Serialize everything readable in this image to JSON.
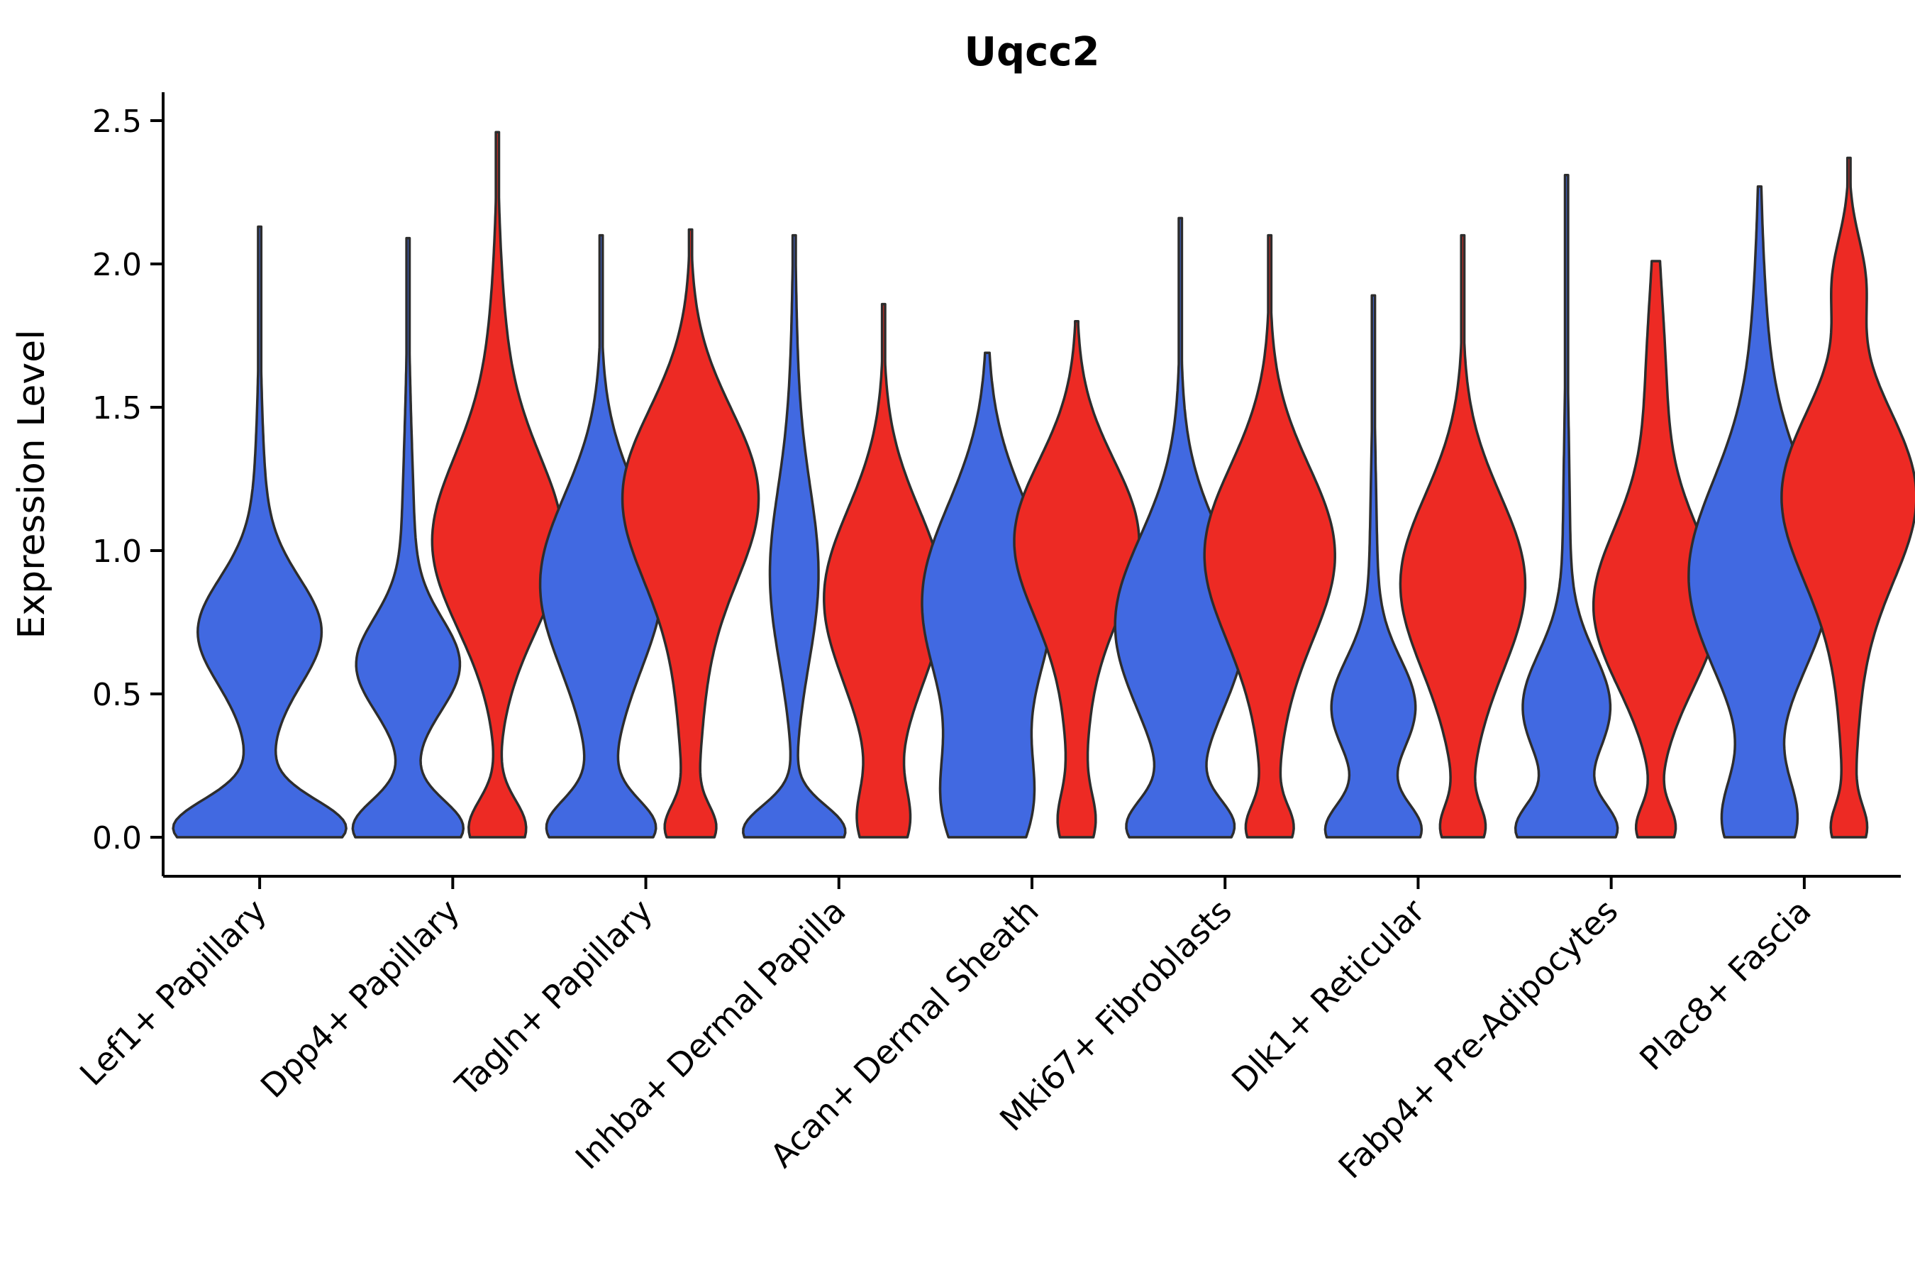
{
  "chart_data": {
    "type": "violin",
    "title": "Uqcc2",
    "ylabel": "Expression Level",
    "xlabel": "",
    "ylim": [
      0,
      2.5
    ],
    "yticks": [
      "0.0",
      "0.5",
      "1.0",
      "1.5",
      "2.0",
      "2.5"
    ],
    "ytick_values": [
      0.0,
      0.5,
      1.0,
      1.5,
      2.0,
      2.5
    ],
    "grid": false,
    "legend": "none",
    "colors": {
      "blue": "#4169e1",
      "red": "#ed2a24",
      "edge": "#2d2d2d",
      "axis": "#000000"
    },
    "categories": [
      "Lef1+ Papillary",
      "Dpp4+ Papillary",
      "Tagln+ Papillary",
      "Inhba+ Dermal Papilla",
      "Acan+ Dermal Sheath",
      "Mki67+ Fibroblasts",
      "Dlk1+ Reticular",
      "Fabp4+ Pre-Adipocytes",
      "Plac8+ Fascia"
    ],
    "violins": [
      {
        "category": "Lef1+ Papillary",
        "blue": {
          "max": 2.13,
          "halfwidth": 122,
          "modes": [
            [
              0.03,
              0.1,
              1.0
            ],
            [
              0.72,
              0.18,
              0.62
            ],
            [
              0.6,
              0.5,
              0.16
            ]
          ]
        },
        "red": null
      },
      {
        "category": "Dpp4+ Papillary",
        "blue": {
          "max": 2.09,
          "halfwidth": 78,
          "modes": [
            [
              0.03,
              0.1,
              1.0
            ],
            [
              0.6,
              0.16,
              0.85
            ],
            [
              0.8,
              0.5,
              0.14
            ]
          ]
        },
        "red": {
          "max": 2.46,
          "halfwidth": 92,
          "modes": [
            [
              1.02,
              0.3,
              1.0
            ],
            [
              0.03,
              0.1,
              0.45
            ],
            [
              1.6,
              0.35,
              0.12
            ]
          ]
        }
      },
      {
        "category": "Tagln+ Papillary",
        "blue": {
          "max": 2.1,
          "halfwidth": 86,
          "modes": [
            [
              0.9,
              0.3,
              1.0
            ],
            [
              0.03,
              0.1,
              0.85
            ],
            [
              0.4,
              0.45,
              0.15
            ]
          ]
        },
        "red": {
          "max": 2.12,
          "halfwidth": 96,
          "modes": [
            [
              1.2,
              0.3,
              1.0
            ],
            [
              0.03,
              0.08,
              0.32
            ],
            [
              0.55,
              0.4,
              0.18
            ]
          ]
        }
      },
      {
        "category": "Inhba+ Dermal Papilla",
        "blue": {
          "max": 2.1,
          "halfwidth": 72,
          "modes": [
            [
              0.02,
              0.09,
              1.0
            ],
            [
              0.9,
              0.3,
              0.42
            ],
            [
              1.3,
              0.5,
              0.08
            ]
          ]
        },
        "red": {
          "max": 1.86,
          "halfwidth": 84,
          "modes": [
            [
              0.85,
              0.3,
              1.0
            ],
            [
              0.05,
              0.12,
              0.32
            ],
            [
              0.3,
              0.4,
              0.15
            ]
          ]
        }
      },
      {
        "category": "Acan+ Dermal Sheath",
        "blue": {
          "max": 1.69,
          "halfwidth": 92,
          "modes": [
            [
              0.85,
              0.32,
              1.0
            ],
            [
              0.1,
              0.2,
              0.55
            ],
            [
              0.4,
              0.5,
              0.25
            ]
          ]
        },
        "red": {
          "max": 1.8,
          "halfwidth": 88,
          "modes": [
            [
              1.05,
              0.27,
              1.0
            ],
            [
              0.05,
              0.1,
              0.22
            ],
            [
              0.5,
              0.45,
              0.18
            ]
          ]
        }
      },
      {
        "category": "Mki67+ Fibroblasts",
        "blue": {
          "max": 2.16,
          "halfwidth": 92,
          "modes": [
            [
              0.75,
              0.3,
              1.0
            ],
            [
              0.03,
              0.1,
              0.78
            ],
            [
              0.5,
              0.55,
              0.15
            ]
          ]
        },
        "red": {
          "max": 2.1,
          "halfwidth": 92,
          "modes": [
            [
              1.0,
              0.3,
              1.0
            ],
            [
              0.03,
              0.08,
              0.3
            ],
            [
              0.5,
              0.5,
              0.15
            ]
          ]
        }
      },
      {
        "category": "Dlk1+ Reticular",
        "blue": {
          "max": 1.89,
          "halfwidth": 68,
          "modes": [
            [
              0.02,
              0.1,
              1.0
            ],
            [
              0.45,
              0.17,
              0.85
            ],
            [
              0.7,
              0.5,
              0.1
            ]
          ]
        },
        "red": {
          "max": 2.1,
          "halfwidth": 88,
          "modes": [
            [
              0.9,
              0.3,
              1.0
            ],
            [
              0.03,
              0.08,
              0.3
            ],
            [
              0.5,
              0.45,
              0.15
            ]
          ]
        }
      },
      {
        "category": "Fabp4+ Pre-Adipocytes",
        "blue": {
          "max": 2.31,
          "halfwidth": 72,
          "modes": [
            [
              0.02,
              0.1,
              1.0
            ],
            [
              0.45,
              0.19,
              0.88
            ],
            [
              0.9,
              0.5,
              0.08
            ]
          ]
        },
        "red": {
          "max": 2.01,
          "halfwidth": 88,
          "modes": [
            [
              0.8,
              0.28,
              1.0
            ],
            [
              0.03,
              0.08,
              0.3
            ],
            [
              1.55,
              0.35,
              0.16
            ]
          ]
        }
      },
      {
        "category": "Plac8+ Fascia",
        "blue": {
          "max": 2.27,
          "halfwidth": 100,
          "modes": [
            [
              0.9,
              0.34,
              1.0
            ],
            [
              0.05,
              0.16,
              0.5
            ],
            [
              1.6,
              0.4,
              0.1
            ]
          ]
        },
        "red": {
          "max": 2.37,
          "halfwidth": 95,
          "modes": [
            [
              1.2,
              0.3,
              1.0
            ],
            [
              1.95,
              0.15,
              0.22
            ],
            [
              0.03,
              0.08,
              0.22
            ],
            [
              0.55,
              0.4,
              0.14
            ]
          ]
        }
      }
    ]
  }
}
